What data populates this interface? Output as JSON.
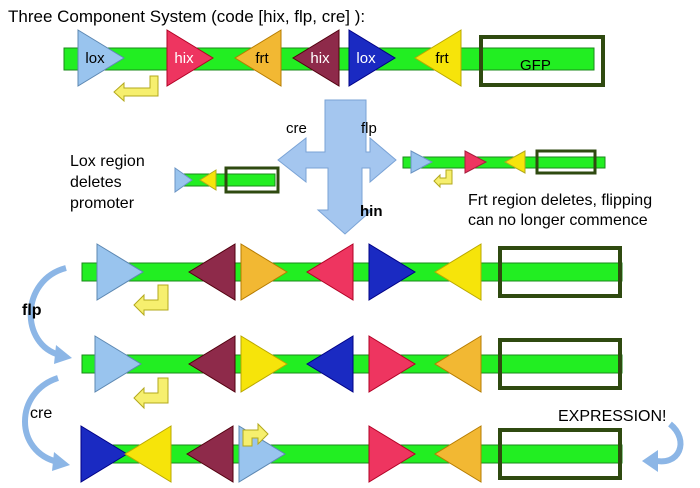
{
  "title": "Three Component System (code [hix, flp, cre] ):",
  "colors": {
    "bar": "#22ee22",
    "bar_stroke": "#1a8a1a",
    "gfp_box": "#2f4a10",
    "lox": "#99c4ee",
    "hix": "#8e2a4a",
    "frt_orange": "#f2b833",
    "frt_yellow": "#f6e40a",
    "hix_red": "#ee3560",
    "lox_blue": "#1a2ac2",
    "promoter": "#f6ef6e",
    "big_arrow": "#a4c6ef",
    "curved_arrow": "#8cb6e6"
  },
  "top_construct": {
    "elements": [
      {
        "label": "lox",
        "color": "lox",
        "dir": "right"
      },
      {
        "label": "hix",
        "color": "hix_red",
        "dir": "right"
      },
      {
        "label": "frt",
        "color": "frt_orange",
        "dir": "left"
      },
      {
        "label": "hix",
        "color": "hix",
        "dir": "left"
      },
      {
        "label": "lox",
        "color": "lox_blue",
        "dir": "right"
      },
      {
        "label": "frt",
        "color": "frt_yellow",
        "dir": "left"
      }
    ],
    "gfp_label": "GFP"
  },
  "branch": {
    "cre_label": "cre",
    "flp_label": "flp",
    "hin_label": "hin"
  },
  "lox_note": [
    "Lox region",
    "deletes",
    "promoter"
  ],
  "frt_note": [
    "Frt region deletes, flipping",
    "can no longer commence"
  ],
  "sequence_rows": [
    [
      {
        "color": "lox",
        "dir": "right"
      },
      {
        "color": "hix",
        "dir": "left"
      },
      {
        "color": "frt_orange",
        "dir": "right"
      },
      {
        "color": "hix_red",
        "dir": "left"
      },
      {
        "color": "lox_blue",
        "dir": "right"
      },
      {
        "color": "frt_yellow",
        "dir": "left"
      }
    ],
    [
      {
        "color": "lox",
        "dir": "right"
      },
      {
        "color": "hix",
        "dir": "left"
      },
      {
        "color": "frt_yellow",
        "dir": "right"
      },
      {
        "color": "lox_blue",
        "dir": "left"
      },
      {
        "color": "hix_red",
        "dir": "right"
      },
      {
        "color": "frt_orange",
        "dir": "left"
      }
    ],
    [
      {
        "color": "lox_blue",
        "dir": "right"
      },
      {
        "color": "frt_yellow",
        "dir": "left"
      },
      {
        "color": "hix",
        "dir": "left"
      },
      {
        "color": "lox",
        "dir": "right"
      },
      {
        "color": "hix_red",
        "dir": "right"
      },
      {
        "color": "frt_orange",
        "dir": "left"
      }
    ]
  ],
  "step_labels": {
    "flp": "flp",
    "cre": "cre",
    "expression": "EXPRESSION!"
  }
}
